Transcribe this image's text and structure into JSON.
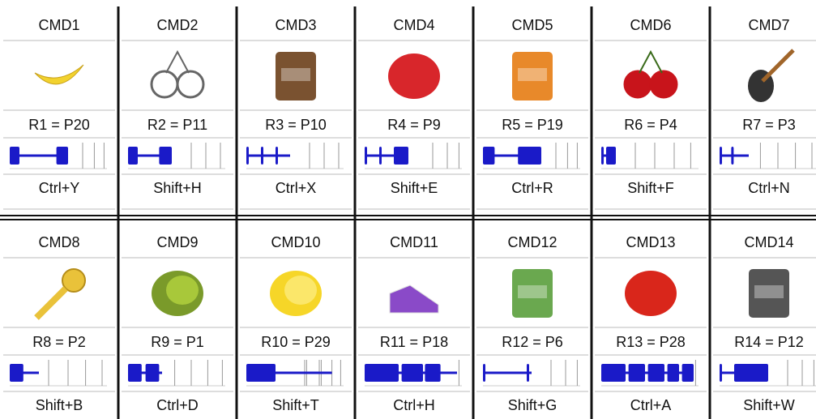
{
  "cells": [
    {
      "command": "CMD1",
      "rule": "R1 = P20",
      "shortcut": "Ctrl+Y"
    },
    {
      "command": "CMD2",
      "rule": "R2 = P11",
      "shortcut": "Shift+H"
    },
    {
      "command": "CMD3",
      "rule": "R3 = P10",
      "shortcut": "Ctrl+X"
    },
    {
      "command": "CMD4",
      "rule": "R4 = P9",
      "shortcut": "Shift+E"
    },
    {
      "command": "CMD5",
      "rule": "R5 = P19",
      "shortcut": "Ctrl+R"
    },
    {
      "command": "CMD6",
      "rule": "R6 = P4",
      "shortcut": "Shift+F"
    },
    {
      "command": "CMD7",
      "rule": "R7 = P3",
      "shortcut": "Ctrl+N"
    },
    {
      "command": "CMD8",
      "rule": "R8 = P2",
      "shortcut": "Shift+B"
    },
    {
      "command": "CMD9",
      "rule": "R9 = P1",
      "shortcut": "Ctrl+D"
    },
    {
      "command": "CMD10",
      "rule": "R10 = P29",
      "shortcut": "Shift+T"
    },
    {
      "command": "CMD11",
      "rule": "R11 = P18",
      "shortcut": "Ctrl+H"
    },
    {
      "command": "CMD12",
      "rule": "R12 = P6",
      "shortcut": "Shift+G"
    },
    {
      "command": "CMD13",
      "rule": "R13 = P28",
      "shortcut": "Ctrl+A"
    },
    {
      "command": "CMD14",
      "rule": "R14 = P12",
      "shortcut": "Shift+W"
    }
  ]
}
